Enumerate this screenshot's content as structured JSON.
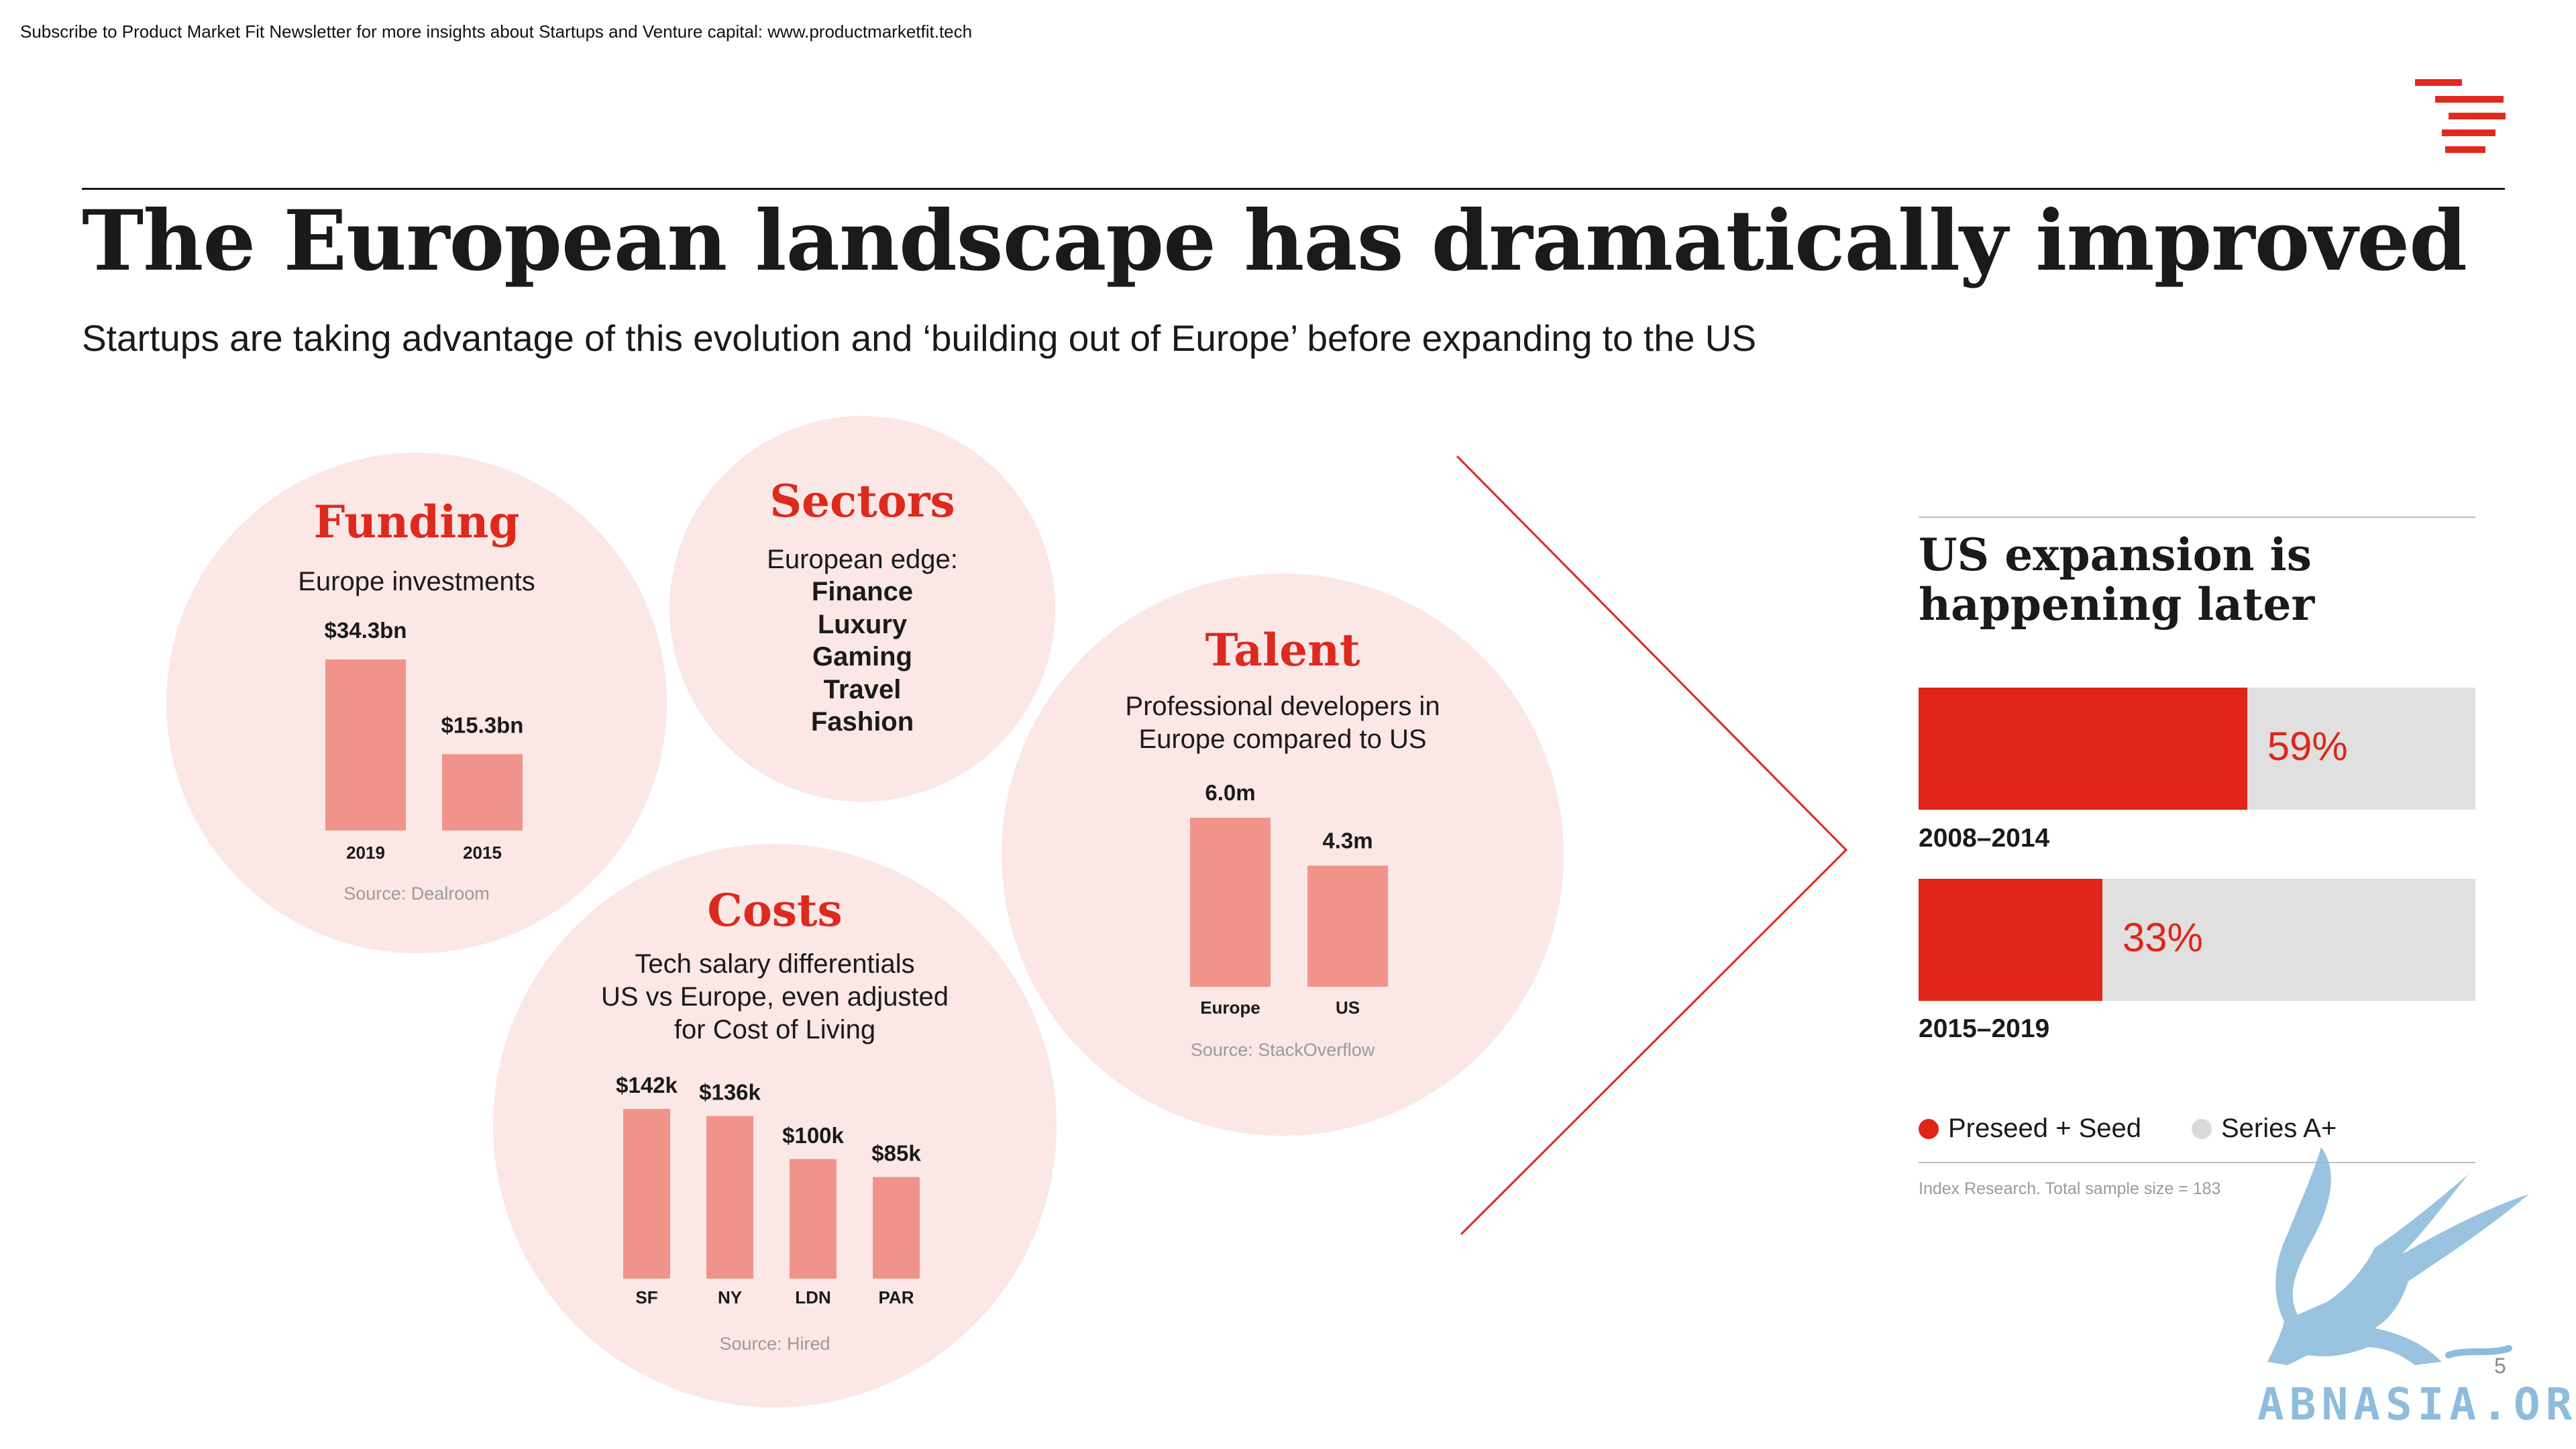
{
  "header": {
    "newsletter": "Subscribe to Product Market Fit Newsletter for more insights about Startups and Venture capital:  www.productmarketfit.tech",
    "title": "The European landscape has dramatically improved",
    "subtitle": "Startups are taking advantage of this evolution and ‘building out of Europe’ before expanding to the US"
  },
  "colors": {
    "accent": "#dc2a1f",
    "bar": "#f0938b",
    "bubble": "#fbe7e6",
    "track": "#e0e0e0"
  },
  "funding": {
    "title": "Funding",
    "subtitle": "Europe investments",
    "source": "Source: Dealroom"
  },
  "sectors": {
    "title": "Sectors",
    "lead": "European edge:",
    "items": [
      "Finance",
      "Luxury",
      "Gaming",
      "Travel",
      "Fashion"
    ]
  },
  "talent": {
    "title": "Talent",
    "subtitle_1": "Professional developers in",
    "subtitle_2": "Europe compared to US",
    "source": "Source: StackOverflow"
  },
  "costs": {
    "title": "Costs",
    "subtitle_1": "Tech salary differentials",
    "subtitle_2": "US vs Europe, even adjusted",
    "subtitle_3": "for Cost of Living",
    "source": "Source: Hired"
  },
  "us_expansion": {
    "title_1": "US expansion is",
    "title_2": "happening later",
    "legend_1": "Preseed + Seed",
    "legend_2": "Series A+",
    "source": "Index Research. Total sample size = 183"
  },
  "page_number": "5",
  "watermark": "ABNASIA.ORG",
  "chart_data": [
    {
      "type": "bar",
      "id": "funding",
      "categories": [
        "2019",
        "2015"
      ],
      "values": [
        34.3,
        15.3
      ],
      "labels": [
        "$34.3bn",
        "$15.3bn"
      ],
      "ylim": [
        0,
        34.3
      ]
    },
    {
      "type": "bar",
      "id": "talent",
      "categories": [
        "Europe",
        "US"
      ],
      "values": [
        6.0,
        4.3
      ],
      "labels": [
        "6.0m",
        "4.3m"
      ],
      "ylim": [
        0,
        6.0
      ]
    },
    {
      "type": "bar",
      "id": "costs",
      "categories": [
        "SF",
        "NY",
        "LDN",
        "PAR"
      ],
      "values": [
        142,
        136,
        100,
        85
      ],
      "labels": [
        "$142k",
        "$136k",
        "$100k",
        "$85k"
      ],
      "ylim": [
        0,
        142
      ]
    },
    {
      "type": "bar",
      "id": "us_expansion",
      "categories": [
        "2008–2014",
        "2015–2019"
      ],
      "series": [
        {
          "name": "Preseed + Seed",
          "values": [
            59,
            33
          ]
        },
        {
          "name": "Series A+",
          "values": [
            41,
            67
          ]
        }
      ],
      "labels": [
        "59%",
        "33%"
      ],
      "ylim": [
        0,
        100
      ]
    }
  ]
}
